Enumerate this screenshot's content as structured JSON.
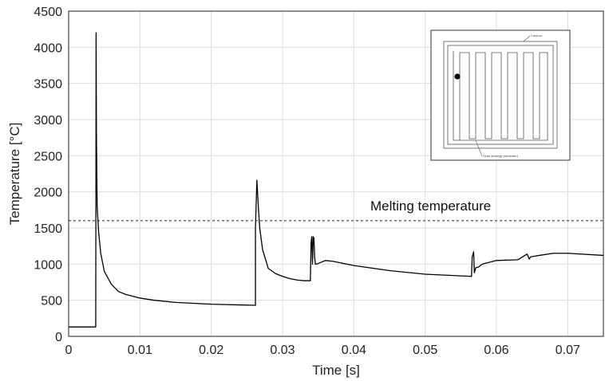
{
  "chart_data": {
    "type": "line",
    "title": "",
    "xlabel": "Time [s]",
    "ylabel": "Temperature [°C]",
    "xlim": [
      0,
      0.075
    ],
    "ylim": [
      0,
      4500
    ],
    "xticks": [
      0,
      0.01,
      0.02,
      0.03,
      0.04,
      0.05,
      0.06,
      0.07
    ],
    "xtick_labels": [
      "0",
      "0.01",
      "0.02",
      "0.03",
      "0.04",
      "0.05",
      "0.06",
      "0.07"
    ],
    "yticks": [
      0,
      500,
      1000,
      1500,
      2000,
      2500,
      3000,
      3500,
      4000,
      4500
    ],
    "ytick_labels": [
      "0",
      "500",
      "1000",
      "1500",
      "2000",
      "2500",
      "3000",
      "3500",
      "4000",
      "4500"
    ],
    "grid": true,
    "series": [
      {
        "color": "#000000",
        "x": [
          0,
          0.0038,
          0.0038,
          0.00385,
          0.0039,
          0.004,
          0.0042,
          0.0045,
          0.005,
          0.006,
          0.007,
          0.008,
          0.01,
          0.012,
          0.015,
          0.018,
          0.02,
          0.022,
          0.024,
          0.0262,
          0.0262,
          0.0264,
          0.0266,
          0.0268,
          0.0272,
          0.028,
          0.029,
          0.03,
          0.031,
          0.032,
          0.033,
          0.0339,
          0.034,
          0.0341,
          0.0342,
          0.0343,
          0.0344,
          0.0345,
          0.0346,
          0.0348,
          0.036,
          0.037,
          0.04,
          0.045,
          0.05,
          0.0565,
          0.0566,
          0.0568,
          0.0569,
          0.0571,
          0.0575,
          0.058,
          0.06,
          0.063,
          0.0643,
          0.0646,
          0.0648,
          0.066,
          0.068,
          0.07,
          0.075
        ],
        "y": [
          130,
          130,
          130,
          4200,
          2800,
          1800,
          1450,
          1150,
          900,
          720,
          620,
          580,
          530,
          500,
          470,
          455,
          445,
          440,
          435,
          430,
          1500,
          2160,
          1800,
          1500,
          1200,
          940,
          870,
          830,
          800,
          780,
          770,
          770,
          1300,
          1380,
          1000,
          1380,
          1360,
          1100,
          1000,
          1000,
          1050,
          1040,
          980,
          910,
          860,
          830,
          1100,
          1170,
          880,
          950,
          960,
          1000,
          1050,
          1060,
          1140,
          1070,
          1100,
          1120,
          1150,
          1150,
          1120
        ]
      }
    ],
    "annotations": [
      {
        "text": "Melting temperature",
        "x": 0.0425,
        "y": 1680
      }
    ],
    "reference_lines": [
      {
        "y": 1600,
        "style": "dashed"
      }
    ],
    "inset": {
      "labels": [
        "Contour",
        "Scan strategy (meander)"
      ]
    }
  }
}
